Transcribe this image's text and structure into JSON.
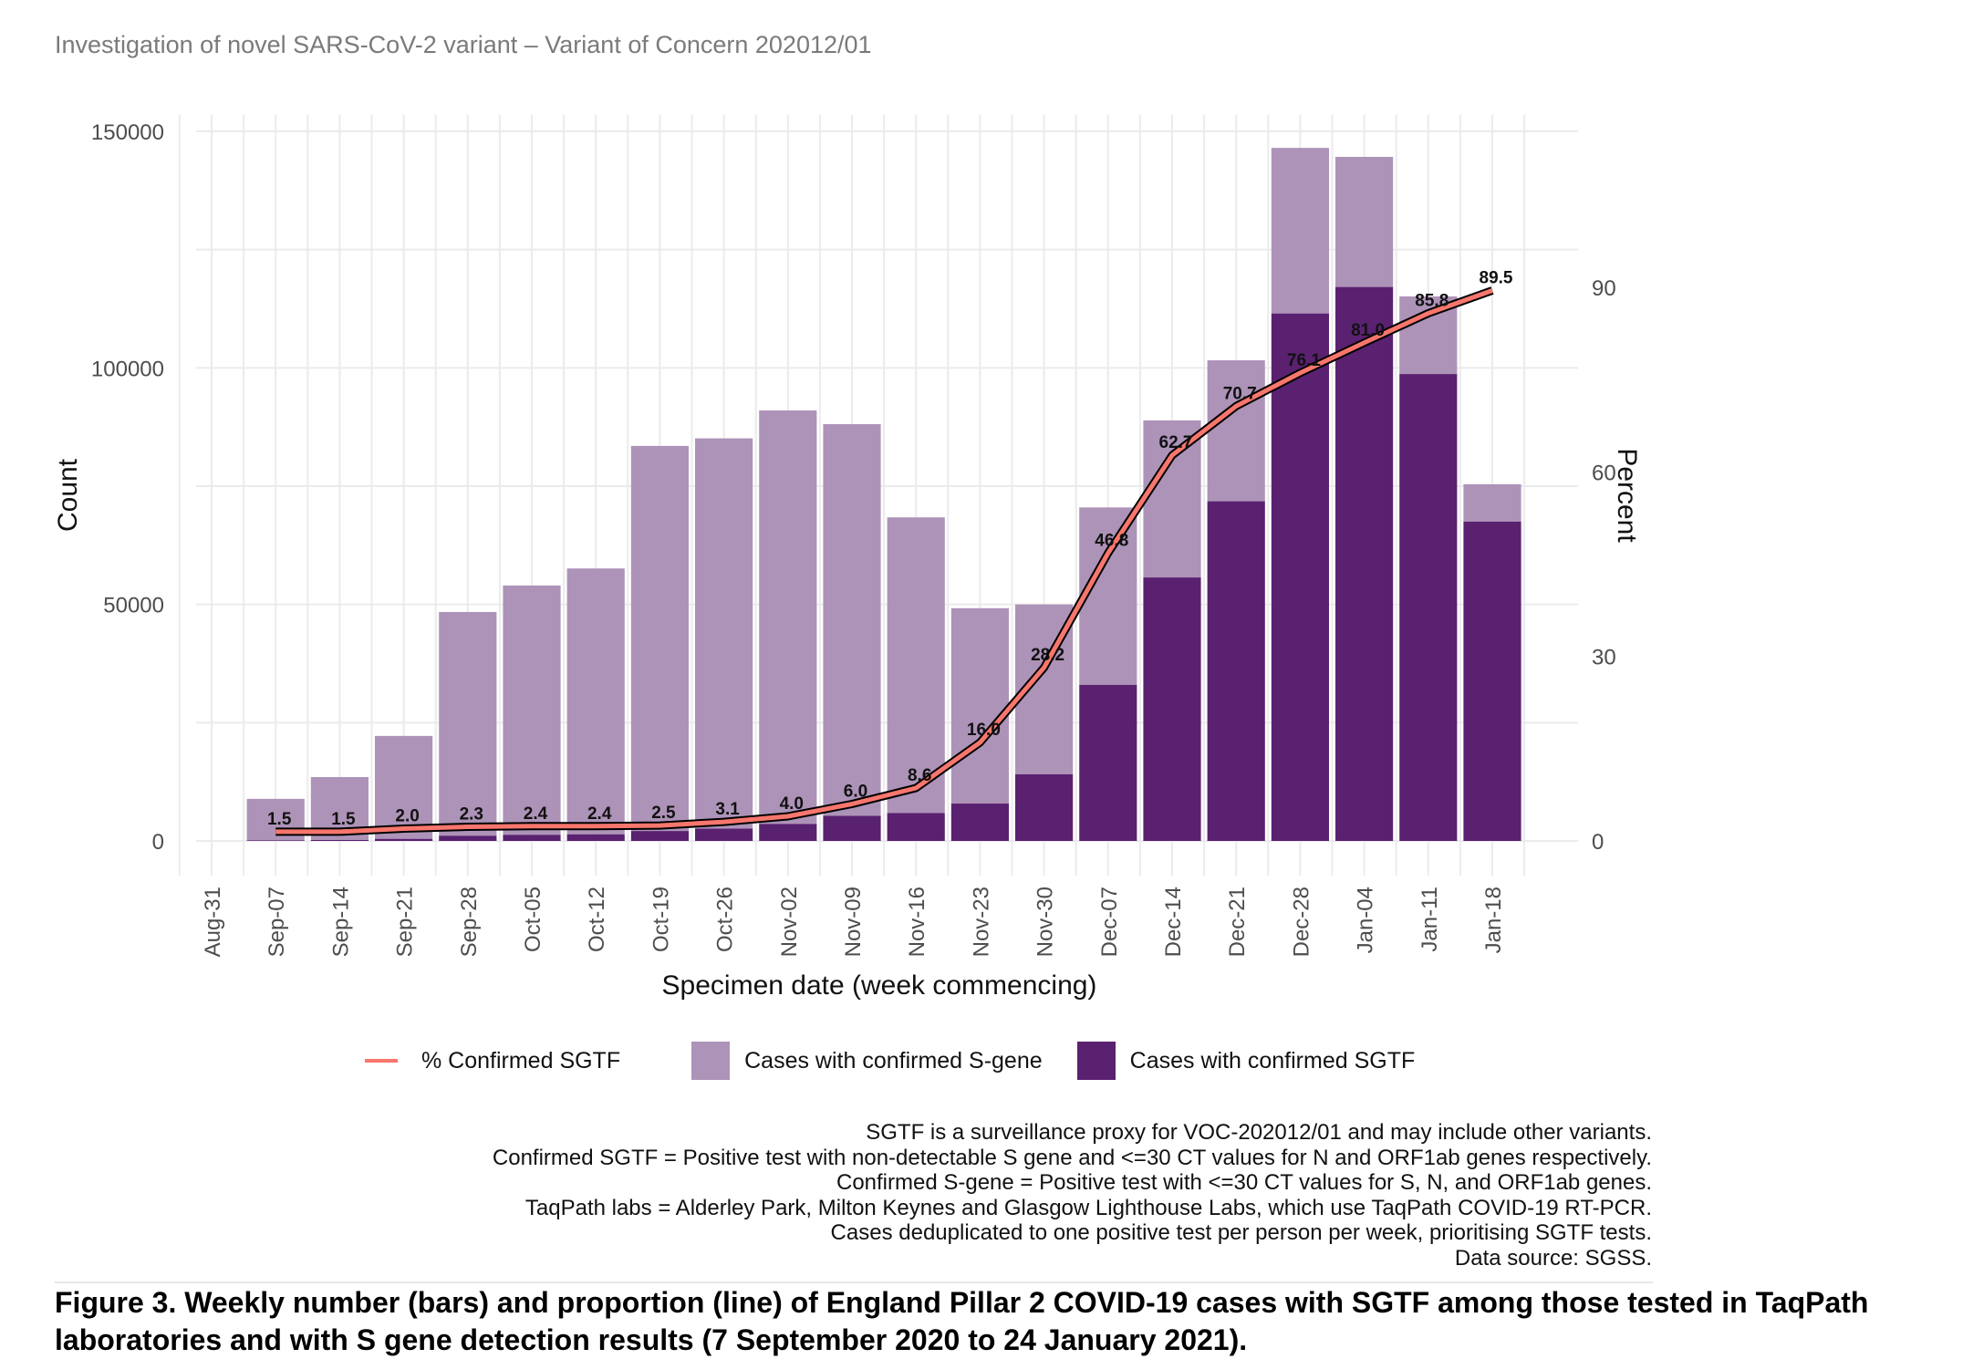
{
  "header": {
    "title": "Investigation of novel SARS-CoV-2 variant – Variant of Concern 202012/01"
  },
  "colors": {
    "s_gene": "#AD93B8",
    "sgtf": "#5A2170",
    "line": "#F8766D",
    "line_outline": "#000000",
    "grid": "#EBEBEB",
    "tick_text": "#4D4D4D"
  },
  "chart_data": {
    "type": "bar",
    "subtype": "stacked bar with line on secondary axis",
    "xlabel": "Specimen date (week commencing)",
    "ylabel": "Count",
    "y2label": "Percent",
    "ylim": [
      0,
      150000
    ],
    "yticks": [
      0,
      50000,
      100000,
      150000
    ],
    "y2ticks": [
      0,
      30,
      60,
      90
    ],
    "y2_scale_note": "percent axis = count / 1300",
    "grid": true,
    "legend_position": "bottom",
    "x_tick_labels": [
      "Aug-31",
      "Sep-07",
      "Sep-14",
      "Sep-21",
      "Sep-28",
      "Oct-05",
      "Oct-12",
      "Oct-19",
      "Oct-26",
      "Nov-02",
      "Nov-09",
      "Nov-16",
      "Nov-23",
      "Nov-30",
      "Dec-07",
      "Dec-14",
      "Dec-21",
      "Dec-28",
      "Jan-04",
      "Jan-11",
      "Jan-18"
    ],
    "categories": [
      "Sep-07",
      "Sep-14",
      "Sep-21",
      "Sep-28",
      "Oct-05",
      "Oct-12",
      "Oct-19",
      "Oct-26",
      "Nov-02",
      "Nov-09",
      "Nov-16",
      "Nov-23",
      "Nov-30",
      "Dec-07",
      "Dec-14",
      "Dec-21",
      "Dec-28",
      "Jan-04",
      "Jan-11",
      "Jan-18"
    ],
    "series": [
      {
        "name": "Cases with confirmed SGTF",
        "kind": "bar",
        "values": [
          130,
          200,
          440,
          1100,
          1300,
          1400,
          2100,
          2600,
          3600,
          5300,
          5900,
          7900,
          14100,
          33000,
          55700,
          71800,
          111500,
          117100,
          98700,
          67500
        ]
      },
      {
        "name": "Cases with confirmed S-gene",
        "kind": "bar",
        "values": [
          8770,
          13300,
          21760,
          47300,
          52700,
          56200,
          81400,
          82500,
          87400,
          82800,
          62500,
          41300,
          35900,
          37500,
          33200,
          29800,
          35000,
          27500,
          16400,
          7900
        ]
      },
      {
        "name": "% Confirmed SGTF",
        "kind": "line",
        "axis": "secondary",
        "values": [
          1.5,
          1.5,
          2.0,
          2.3,
          2.4,
          2.4,
          2.5,
          3.1,
          4.0,
          6.0,
          8.6,
          16.0,
          28.2,
          46.8,
          62.7,
          70.7,
          76.1,
          81.0,
          85.8,
          89.5
        ],
        "labels": [
          "1.5",
          "1.5",
          "2.0",
          "2.3",
          "2.4",
          "2.4",
          "2.5",
          "3.1",
          "4.0",
          "6.0",
          "8.6",
          "16.0",
          "28.2",
          "46.8",
          "62.7",
          "70.7",
          "76.1",
          "81.0",
          "85.8",
          "89.5"
        ]
      }
    ],
    "legend": [
      {
        "label": "% Confirmed SGTF",
        "type": "line"
      },
      {
        "label": "Cases with confirmed S-gene",
        "type": "fill"
      },
      {
        "label": "Cases with confirmed SGTF",
        "type": "fill"
      }
    ]
  },
  "footnotes": [
    "SGTF is a surveillance proxy for VOC-202012/01 and may include other variants.",
    "Confirmed SGTF = Positive test with non-detectable S gene and <=30 CT values for N and ORF1ab genes respectively.",
    "Confirmed S-gene = Positive test with <=30 CT values for S, N, and ORF1ab genes.",
    "TaqPath labs = Alderley Park, Milton Keynes and Glasgow Lighthouse Labs, which use TaqPath COVID-19 RT-PCR.",
    "Cases deduplicated to one positive test per person per week, prioritising SGTF tests.",
    "Data source: SGSS."
  ],
  "caption": "Figure 3. Weekly number (bars) and proportion (line) of England Pillar 2 COVID-19 cases with SGTF among those tested in TaqPath laboratories and with S gene detection results (7 September 2020 to 24 January 2021)."
}
